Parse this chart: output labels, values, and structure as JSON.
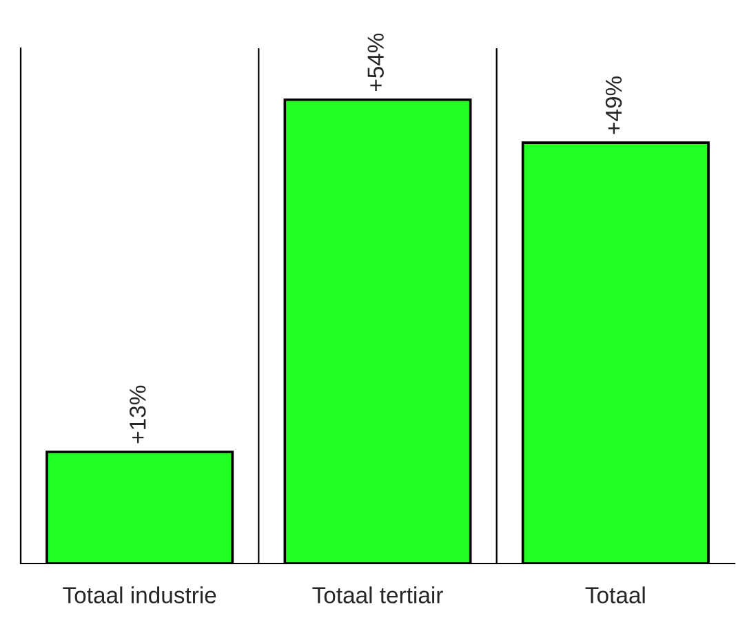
{
  "chart_data": {
    "type": "bar",
    "categories": [
      "Totaal industrie",
      "Totaal tertiair",
      "Totaal"
    ],
    "values": [
      13,
      54,
      49
    ],
    "value_labels": [
      "+13%",
      "+54%",
      "+49%"
    ],
    "color": "#22ff22",
    "ylim": [
      0,
      60
    ],
    "grid": "x"
  }
}
